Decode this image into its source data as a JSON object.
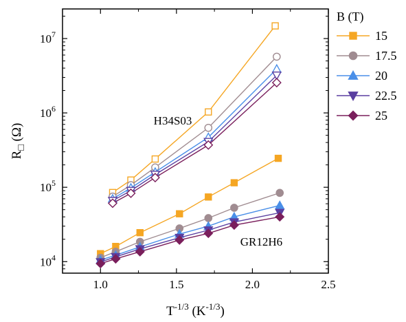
{
  "chart_data": {
    "type": "line",
    "title": "",
    "xlabel": "T^{-1/3} (K^{-1/3})",
    "xlabel_parts": {
      "main": "T",
      "main_sup": "-1/3",
      "unit_open": " (K",
      "unit_sup": "-1/3",
      "unit_close": ")"
    },
    "ylabel": "R□ (Ω)",
    "ylabel_parts": {
      "main": "R",
      "sub_symbol": "□",
      "unit": " (Ω)"
    },
    "xlim": [
      0.75,
      2.5
    ],
    "ylim": [
      7000,
      25000000
    ],
    "yscale": "log",
    "grid": false,
    "x_ticks": [
      1.0,
      1.5,
      2.0,
      2.5
    ],
    "x_tick_labels": [
      "1.0",
      "1.5",
      "2.0",
      "2.5"
    ],
    "y_ticks": [
      10000,
      100000,
      1000000,
      10000000
    ],
    "y_tick_labels": [
      {
        "base": "10",
        "exp": "4"
      },
      {
        "base": "10",
        "exp": "5"
      },
      {
        "base": "10",
        "exp": "6"
      },
      {
        "base": "10",
        "exp": "7"
      }
    ],
    "legend": {
      "title": "B (T)",
      "placement": "outside-right"
    },
    "annotations": [
      {
        "text": "H34S03",
        "x": 1.35,
        "y": 700000
      },
      {
        "text": "GR12H6",
        "x": 1.92,
        "y": 16500
      }
    ],
    "series": [
      {
        "name": "15",
        "color": "#f5a623",
        "marker": "square",
        "samples": [
          {
            "label": "H34S03",
            "filled": false,
            "x": [
              1.08,
              1.2,
              1.36,
              1.71,
              2.15
            ],
            "y": [
              85000,
              125000,
              240000,
              1030000,
              14800000
            ]
          },
          {
            "label": "GR12H6",
            "filled": true,
            "x": [
              1.0,
              1.1,
              1.26,
              1.52,
              1.71,
              1.88,
              2.17
            ],
            "y": [
              12800,
              16000,
              24500,
              44000,
              74000,
              115000,
              245000
            ]
          }
        ]
      },
      {
        "name": "17.5",
        "color": "#a08c91",
        "marker": "circle",
        "samples": [
          {
            "label": "H34S03",
            "filled": false,
            "x": [
              1.08,
              1.2,
              1.36,
              1.71,
              2.16
            ],
            "y": [
              75000,
              107000,
              185000,
              630000,
              5700000
            ]
          },
          {
            "label": "GR12H6",
            "filled": true,
            "x": [
              1.0,
              1.1,
              1.26,
              1.52,
              1.71,
              1.88,
              2.18
            ],
            "y": [
              11300,
              13600,
              18500,
              28000,
              38500,
              53000,
              84000
            ]
          }
        ]
      },
      {
        "name": "20",
        "color": "#4a8fe8",
        "marker": "triangle-up",
        "samples": [
          {
            "label": "H34S03",
            "filled": false,
            "x": [
              1.08,
              1.2,
              1.36,
              1.71,
              2.16
            ],
            "y": [
              70000,
              98000,
              160000,
              470000,
              3900000
            ]
          },
          {
            "label": "GR12H6",
            "filled": true,
            "x": [
              1.0,
              1.1,
              1.26,
              1.52,
              1.71,
              1.88,
              2.18
            ],
            "y": [
              10500,
              12200,
              15800,
              23500,
              30000,
              40000,
              57000
            ]
          }
        ]
      },
      {
        "name": "22.5",
        "color": "#5a3fa0",
        "marker": "triangle-down",
        "samples": [
          {
            "label": "H34S03",
            "filled": false,
            "x": [
              1.08,
              1.2,
              1.36,
              1.71,
              2.16
            ],
            "y": [
              66000,
              90000,
              148000,
              410000,
              3200000
            ]
          },
          {
            "label": "GR12H6",
            "filled": true,
            "x": [
              1.0,
              1.1,
              1.26,
              1.52,
              1.71,
              1.88,
              2.18
            ],
            "y": [
              9900,
              11600,
              14800,
              21000,
              26500,
              34000,
              45500
            ]
          }
        ]
      },
      {
        "name": "25",
        "color": "#7a1f5c",
        "marker": "diamond",
        "samples": [
          {
            "label": "H34S03",
            "filled": false,
            "x": [
              1.08,
              1.2,
              1.36,
              1.71,
              2.16
            ],
            "y": [
              61000,
              83000,
              135000,
              370000,
              2550000
            ]
          },
          {
            "label": "GR12H6",
            "filled": true,
            "x": [
              1.0,
              1.1,
              1.26,
              1.52,
              1.71,
              1.88,
              2.18
            ],
            "y": [
              9400,
              10900,
              13600,
              19500,
              24000,
              31000,
              40000
            ]
          }
        ]
      }
    ]
  }
}
